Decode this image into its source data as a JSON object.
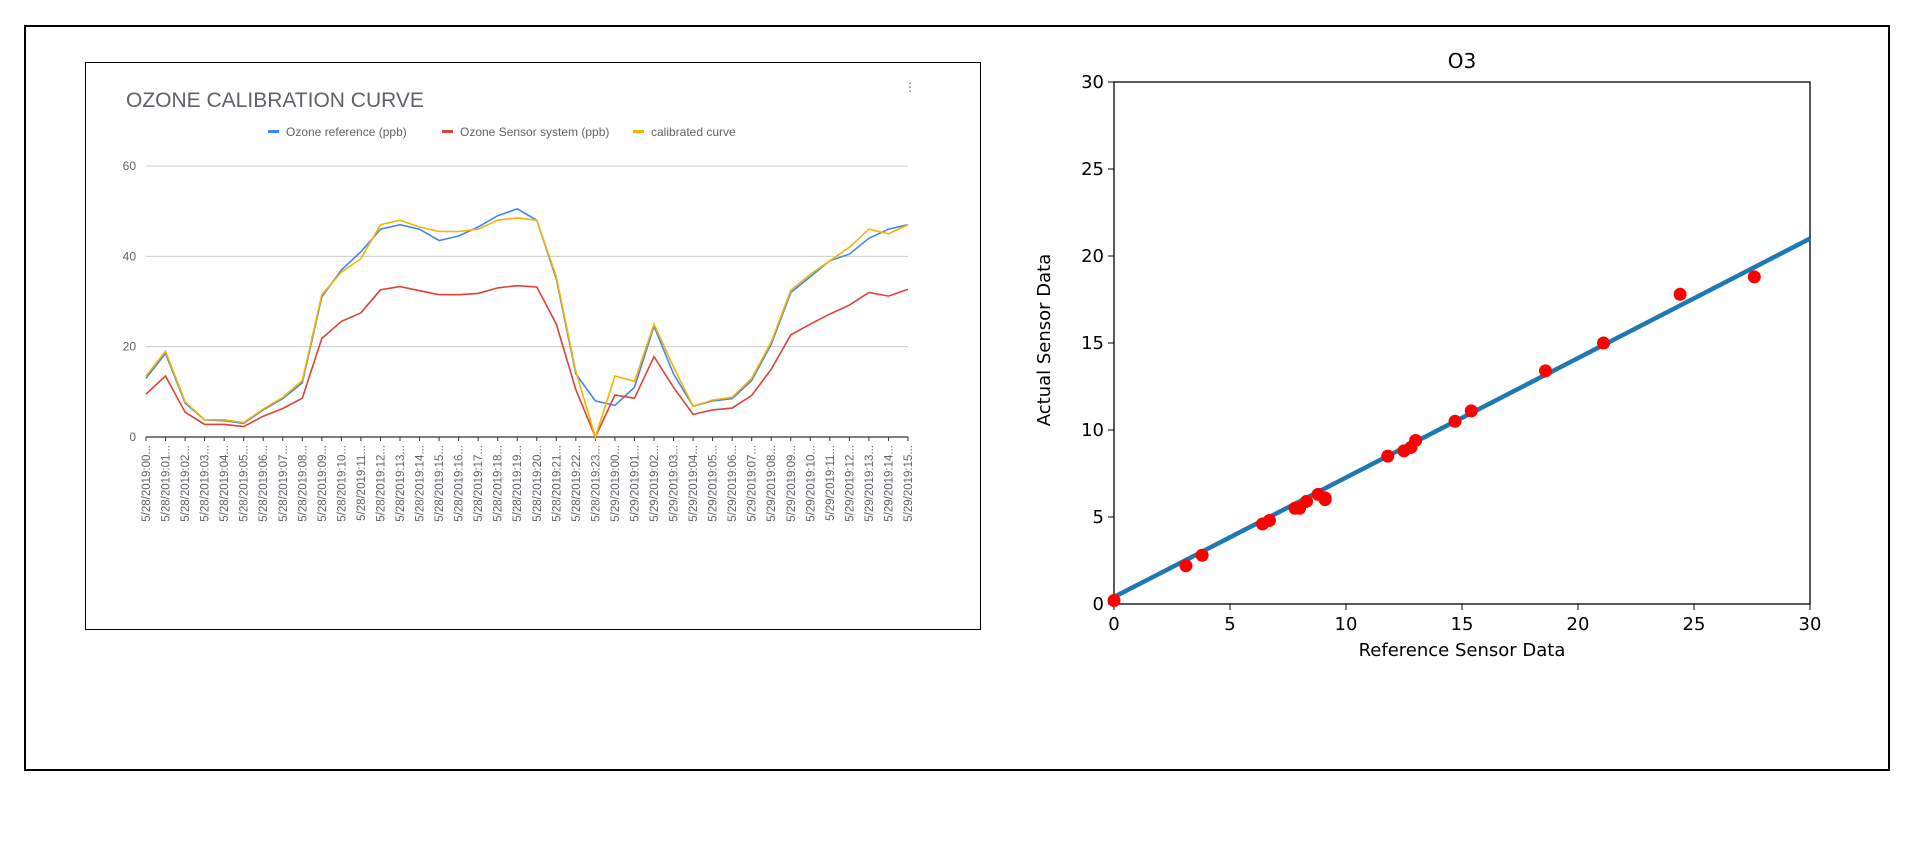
{
  "chart_data": [
    {
      "type": "line",
      "title": "OZONE CALIBRATION CURVE",
      "legend_position": "top",
      "grid": true,
      "ylim": [
        0,
        60
      ],
      "yticks": [
        "0",
        "20",
        "40",
        "60"
      ],
      "categories": [
        "5/28/2019:00...",
        "5/28/2019:01...",
        "5/28/2019:02...",
        "5/28/2019:03...",
        "5/28/2019:04...",
        "5/28/2019:05...",
        "5/28/2019:06...",
        "5/28/2019:07...",
        "5/28/2019:08...",
        "5/28/2019:09...",
        "5/28/2019:10...",
        "5/28/2019:11...",
        "5/28/2019:12...",
        "5/28/2019:13...",
        "5/28/2019:14...",
        "5/28/2019:15...",
        "5/28/2019:16...",
        "5/28/2019:17...",
        "5/28/2019:18...",
        "5/28/2019:19...",
        "5/28/2019:20...",
        "5/28/2019:21...",
        "5/28/2019:22...",
        "5/28/2019:23...",
        "5/29/2019:00...",
        "5/29/2019:01...",
        "5/29/2019:02...",
        "5/29/2019:03...",
        "5/29/2019:04...",
        "5/29/2019:05...",
        "5/29/2019:06...",
        "5/29/2019:07...",
        "5/29/2019:08...",
        "5/29/2019:09...",
        "5/29/2019:10...",
        "5/29/2019:11...",
        "5/29/2019:12...",
        "5/29/2019:13...",
        "5/29/2019:14...",
        "5/29/2019:15..."
      ],
      "series": [
        {
          "name": "Ozone reference (ppb)",
          "color": "#4285f4",
          "values": [
            13,
            18.5,
            7.5,
            3.8,
            3.6,
            3,
            6,
            8.5,
            12,
            31,
            37,
            41,
            46,
            47,
            46,
            43.5,
            44.5,
            46.5,
            49,
            50.5,
            48,
            35,
            14,
            8,
            7,
            11,
            24.5,
            14,
            6.8,
            8,
            8.5,
            12.5,
            20.5,
            32,
            35.5,
            39,
            40.5,
            44,
            46,
            47
          ]
        },
        {
          "name": "Ozone Sensor system (ppb)",
          "color": "#db4437",
          "values": [
            9.5,
            13.5,
            5.5,
            2.8,
            2.8,
            2.3,
            4.6,
            6.3,
            8.6,
            21.8,
            25.6,
            27.5,
            32.6,
            33.3,
            32.4,
            31.5,
            31.5,
            31.8,
            33,
            33.5,
            33.2,
            25,
            10.5,
            0,
            9.3,
            8.6,
            17.8,
            11,
            5,
            6,
            6.4,
            9.2,
            15,
            22.6,
            25,
            27.2,
            29.2,
            32,
            31.2,
            32.7
          ]
        },
        {
          "name": "calibrated curve",
          "color": "#f4b400",
          "values": [
            13.5,
            19,
            7.8,
            3.8,
            3.8,
            3.2,
            6.2,
            8.8,
            12.5,
            31.5,
            36.5,
            39.5,
            47,
            48,
            46.5,
            45.5,
            45.5,
            46,
            48,
            48.5,
            48,
            35.5,
            14.5,
            0,
            13.5,
            12.3,
            25,
            15.5,
            6.8,
            8.2,
            8.8,
            13,
            21,
            32.5,
            36,
            39,
            42,
            46,
            45,
            47
          ]
        }
      ]
    },
    {
      "type": "scatter",
      "title": "O3",
      "xlabel": "Reference Sensor Data",
      "ylabel": "Actual Sensor Data",
      "xlim": [
        0,
        30
      ],
      "ylim": [
        0,
        30
      ],
      "xticks": [
        "0",
        "5",
        "10",
        "15",
        "20",
        "25",
        "30"
      ],
      "yticks": [
        "0",
        "5",
        "10",
        "15",
        "20",
        "25",
        "30"
      ],
      "grid": false,
      "fit_line": {
        "color": "#1f77b4",
        "x": [
          0,
          30
        ],
        "y": [
          0.4,
          21
        ]
      },
      "points": {
        "color": "#ff0000",
        "x": [
          0,
          3.1,
          3.8,
          6.4,
          6.7,
          7.8,
          8,
          8.3,
          8.8,
          9.1,
          9.1,
          11.8,
          12.5,
          12.8,
          13,
          14.7,
          15.4,
          18.6,
          21.1,
          24.4,
          27.6
        ],
        "y": [
          0.2,
          2.2,
          2.8,
          4.6,
          4.8,
          5.5,
          5.5,
          5.9,
          6.3,
          6,
          6.1,
          8.5,
          8.8,
          9,
          9.4,
          10.5,
          11.1,
          13.4,
          15,
          17.8,
          18.8
        ]
      }
    }
  ]
}
